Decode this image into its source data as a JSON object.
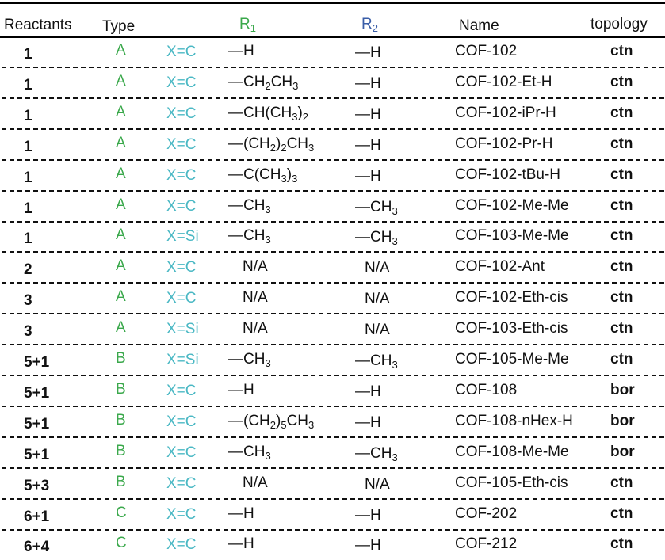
{
  "headers": {
    "reactants": "Reactants",
    "type": "Type",
    "r1_letter": "R",
    "r1_sub": "1",
    "r2_letter": "R",
    "r2_sub": "2",
    "name": "Name",
    "topology": "topology"
  },
  "colors": {
    "type": "#3aa84b",
    "x": "#4ab8c4",
    "r2_header": "#3a5ea8",
    "r1_header": "#3aa84b"
  },
  "rows": [
    {
      "reactants": "1",
      "type": "A",
      "x": "X=C",
      "r1": [
        [
          "—H",
          ""
        ]
      ],
      "r2": [
        [
          "—H",
          ""
        ]
      ],
      "name": "COF-102",
      "topology": "ctn"
    },
    {
      "reactants": "1",
      "type": "A",
      "x": "X=C",
      "r1": [
        [
          "—CH",
          ""
        ],
        [
          "2",
          "sub"
        ],
        [
          "CH",
          ""
        ],
        [
          "3",
          "sub"
        ]
      ],
      "r2": [
        [
          "—H",
          ""
        ]
      ],
      "name": "COF-102-Et-H",
      "topology": "ctn"
    },
    {
      "reactants": "1",
      "type": "A",
      "x": "X=C",
      "r1": [
        [
          "—CH(CH",
          ""
        ],
        [
          "3",
          "sub"
        ],
        [
          ")",
          ""
        ],
        [
          "2",
          "sub"
        ]
      ],
      "r2": [
        [
          "—H",
          ""
        ]
      ],
      "name": "COF-102-iPr-H",
      "topology": "ctn"
    },
    {
      "reactants": "1",
      "type": "A",
      "x": "X=C",
      "r1": [
        [
          "—(CH",
          ""
        ],
        [
          "2",
          "sub"
        ],
        [
          ")",
          ""
        ],
        [
          "2",
          "sub"
        ],
        [
          "CH",
          ""
        ],
        [
          "3",
          "sub"
        ]
      ],
      "r2": [
        [
          "—H",
          ""
        ]
      ],
      "name": "COF-102-Pr-H",
      "topology": "ctn"
    },
    {
      "reactants": "1",
      "type": "A",
      "x": "X=C",
      "r1": [
        [
          "—C(CH",
          ""
        ],
        [
          "3",
          "sub"
        ],
        [
          ")",
          ""
        ],
        [
          "3",
          "sub"
        ]
      ],
      "r2": [
        [
          "—H",
          ""
        ]
      ],
      "name": "COF-102-tBu-H",
      "topology": "ctn"
    },
    {
      "reactants": "1",
      "type": "A",
      "x": "X=C",
      "r1": [
        [
          "—CH",
          ""
        ],
        [
          "3",
          "sub"
        ]
      ],
      "r2": [
        [
          "—CH",
          ""
        ],
        [
          "3",
          "sub"
        ]
      ],
      "name": "COF-102-Me-Me",
      "topology": "ctn"
    },
    {
      "reactants": "1",
      "type": "A",
      "x": "X=Si",
      "r1": [
        [
          "—CH",
          ""
        ],
        [
          "3",
          "sub"
        ]
      ],
      "r2": [
        [
          "—CH",
          ""
        ],
        [
          "3",
          "sub"
        ]
      ],
      "name": "COF-103-Me-Me",
      "topology": "ctn"
    },
    {
      "reactants": "2",
      "type": "A",
      "x": "X=C",
      "r1": [
        [
          "N/A",
          ""
        ]
      ],
      "r2": [
        [
          "N/A",
          ""
        ]
      ],
      "name": "COF-102-Ant",
      "topology": "ctn"
    },
    {
      "reactants": "3",
      "type": "A",
      "x": "X=C",
      "r1": [
        [
          "N/A",
          ""
        ]
      ],
      "r2": [
        [
          "N/A",
          ""
        ]
      ],
      "name": "COF-102-Eth-cis",
      "topology": "ctn"
    },
    {
      "reactants": "3",
      "type": "A",
      "x": "X=Si",
      "r1": [
        [
          "N/A",
          ""
        ]
      ],
      "r2": [
        [
          "N/A",
          ""
        ]
      ],
      "name": "COF-103-Eth-cis",
      "topology": "ctn"
    },
    {
      "reactants": "5+1",
      "type": "B",
      "x": "X=Si",
      "r1": [
        [
          "—CH",
          ""
        ],
        [
          "3",
          "sub"
        ]
      ],
      "r2": [
        [
          "—CH",
          ""
        ],
        [
          "3",
          "sub"
        ]
      ],
      "name": "COF-105-Me-Me",
      "topology": "ctn"
    },
    {
      "reactants": "5+1",
      "type": "B",
      "x": "X=C",
      "r1": [
        [
          "—H",
          ""
        ]
      ],
      "r2": [
        [
          "—H",
          ""
        ]
      ],
      "name": "COF-108",
      "topology": "bor"
    },
    {
      "reactants": "5+1",
      "type": "B",
      "x": "X=C",
      "r1": [
        [
          "—(CH",
          ""
        ],
        [
          "2",
          "sub"
        ],
        [
          ")",
          ""
        ],
        [
          "5",
          "sub"
        ],
        [
          "CH",
          ""
        ],
        [
          "3",
          "sub"
        ]
      ],
      "r2": [
        [
          "—H",
          ""
        ]
      ],
      "name": "COF-108-nHex-H",
      "topology": "bor"
    },
    {
      "reactants": "5+1",
      "type": "B",
      "x": "X=C",
      "r1": [
        [
          "—CH",
          ""
        ],
        [
          "3",
          "sub"
        ]
      ],
      "r2": [
        [
          "—CH",
          ""
        ],
        [
          "3",
          "sub"
        ]
      ],
      "name": "COF-108-Me-Me",
      "topology": "bor"
    },
    {
      "reactants": "5+3",
      "type": "B",
      "x": "X=C",
      "r1": [
        [
          "N/A",
          ""
        ]
      ],
      "r2": [
        [
          "N/A",
          ""
        ]
      ],
      "name": "COF-105-Eth-cis",
      "topology": "ctn"
    },
    {
      "reactants": "6+1",
      "type": "C",
      "x": "X=C",
      "r1": [
        [
          "—H",
          ""
        ]
      ],
      "r2": [
        [
          "—H",
          ""
        ]
      ],
      "name": "COF-202",
      "topology": "ctn"
    },
    {
      "reactants": "6+4",
      "type": "C",
      "x": "X=C",
      "r1": [
        [
          "—H",
          ""
        ]
      ],
      "r2": [
        [
          "—H",
          ""
        ]
      ],
      "name": "COF-212",
      "topology": "ctn"
    }
  ]
}
